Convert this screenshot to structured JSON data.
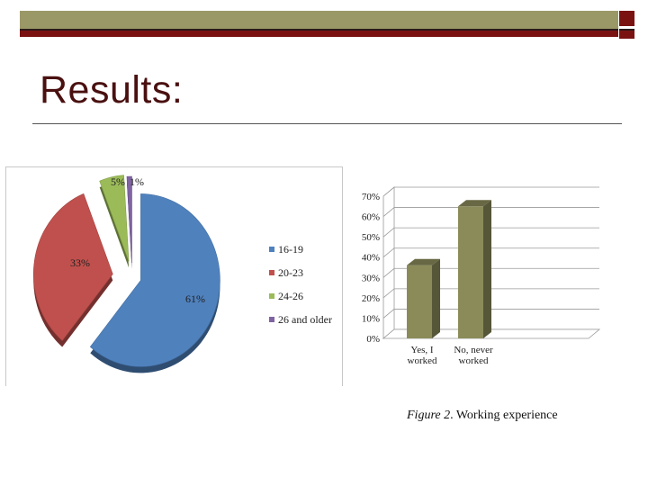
{
  "slide": {
    "title": "Results:"
  },
  "colors": {
    "band": "#9b9867",
    "maroon": "#7a1212",
    "title": "#4a1010"
  },
  "chart_data": [
    {
      "type": "pie",
      "categories": [
        "16-19",
        "20-23",
        "24-26",
        "26 and older"
      ],
      "values": [
        61,
        33,
        5,
        1
      ],
      "value_labels": [
        "61%",
        "33%",
        "5%",
        "1%"
      ],
      "colors": [
        "#4f81bd",
        "#c0504d",
        "#9bbb59",
        "#8064a2"
      ],
      "exploded": true,
      "legend_position": "right"
    },
    {
      "type": "bar",
      "style": "3d",
      "categories": [
        "Yes, I worked",
        "No, never worked"
      ],
      "category_lines": [
        [
          "Yes, I",
          "worked"
        ],
        [
          "No, never",
          "worked"
        ]
      ],
      "values": [
        36,
        65
      ],
      "ylim": [
        0,
        70
      ],
      "yticks": [
        "0%",
        "10%",
        "20%",
        "30%",
        "40%",
        "50%",
        "60%",
        "70%"
      ],
      "color": "#8b8b5a",
      "grid": true
    }
  ],
  "caption": {
    "figure": "Figure 2",
    "text": ". Working experience"
  }
}
